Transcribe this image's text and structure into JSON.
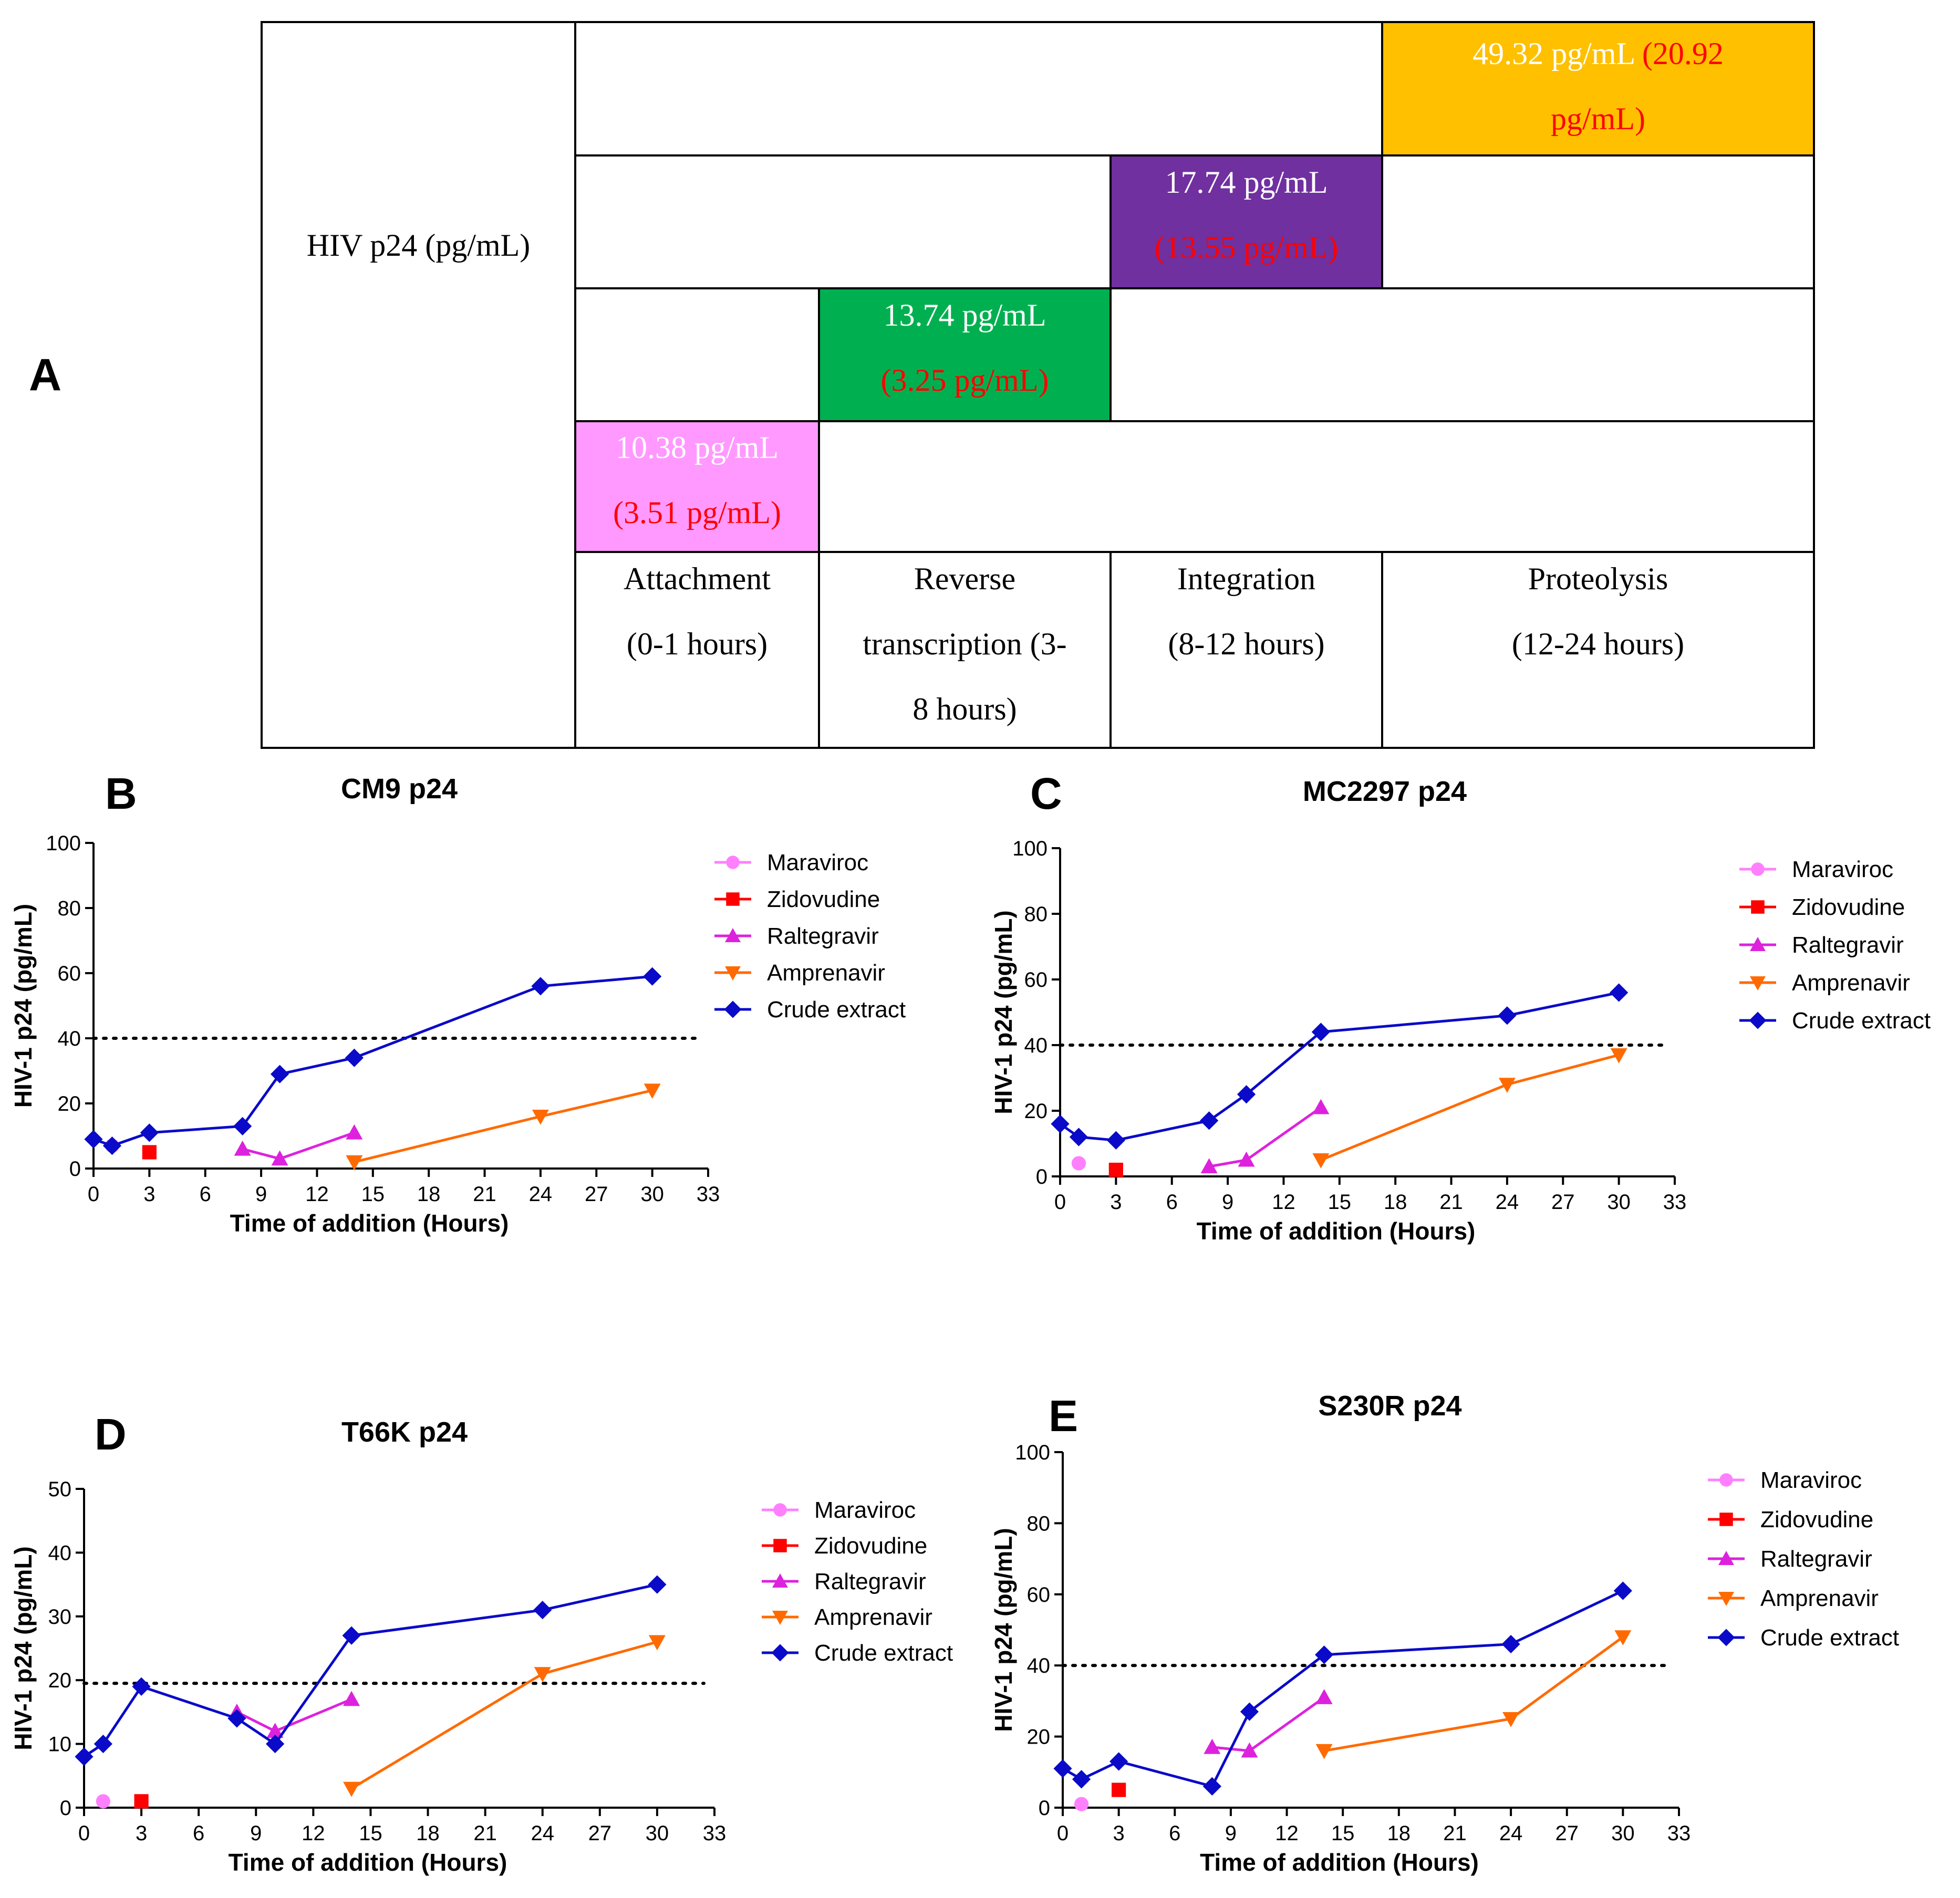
{
  "panel_a": {
    "label": "A",
    "row_header": "HIV p24 (pg/mL)",
    "stages": [
      {
        "line1": "Attachment",
        "line2": "(0-1 hours)",
        "line3": ""
      },
      {
        "line1": "Reverse",
        "line2": "transcription (3-",
        "line3": "8 hours)"
      },
      {
        "line1": "Integration",
        "line2": "(8-12 hours)",
        "line3": ""
      },
      {
        "line1": "Proteolysis",
        "line2": "(12-24 hours)",
        "line3": ""
      }
    ],
    "cells": [
      {
        "stage": "Attachment",
        "value": "10.38  pg/mL",
        "value2": "(3.51 pg/mL)",
        "color": "#ff99ff",
        "value_color": "#ffffff",
        "value2_color": "#ff0000"
      },
      {
        "stage": "Reverse transcription",
        "value": "13.74  pg/mL",
        "value2": "(3.25 pg/mL)",
        "color": "#00b050",
        "value_color": "#ffffff",
        "value2_color": "#ff0000"
      },
      {
        "stage": "Integration",
        "value": "17.74 pg/mL",
        "value2": "(13.55 pg/mL)",
        "color": "#7030a0",
        "value_color": "#ffffff",
        "value2_color": "#ff0000"
      },
      {
        "stage": "Proteolysis",
        "value": "49.32 pg/mL",
        "value_extra": " (20.92",
        "value2": "pg/mL)",
        "color": "#ffc000",
        "value_color": "#ffffff",
        "value2_color": "#ff0000"
      }
    ]
  },
  "colors": {
    "Maraviroc": "#ff80ff",
    "Zidovudine": "#ff0000",
    "Raltegravir": "#dd22dd",
    "Amprenavir": "#ff6a00",
    "Crude extract": "#0a0ac8"
  },
  "chart_data": [
    {
      "panel": "B",
      "type": "line",
      "title": "CM9 p24",
      "xlabel": "Time of addition (Hours)",
      "ylabel": "HIV-1 p24 (pg/mL)",
      "xlim": [
        0,
        33
      ],
      "ylim": [
        0,
        100
      ],
      "xticks": [
        0,
        3,
        6,
        9,
        12,
        15,
        18,
        21,
        24,
        27,
        30,
        33
      ],
      "yticks": [
        0,
        20,
        40,
        60,
        80,
        100
      ],
      "threshold": 40,
      "legend": [
        "Maraviroc",
        "Zidovudine",
        "Raltegravir",
        "Amprenavir",
        "Crude extract"
      ],
      "series": [
        {
          "name": "Maraviroc",
          "marker": "circle",
          "x": [
            1
          ],
          "y": [
            7
          ]
        },
        {
          "name": "Zidovudine",
          "marker": "square",
          "x": [
            3
          ],
          "y": [
            5
          ]
        },
        {
          "name": "Raltegravir",
          "marker": "triangle",
          "x": [
            8,
            10,
            14
          ],
          "y": [
            6,
            3,
            11
          ]
        },
        {
          "name": "Amprenavir",
          "marker": "triangle-down",
          "x": [
            14,
            24,
            30
          ],
          "y": [
            2,
            16,
            24
          ]
        },
        {
          "name": "Crude extract",
          "marker": "diamond",
          "x": [
            0,
            1,
            3,
            8,
            10,
            14,
            24,
            30
          ],
          "y": [
            9,
            7,
            11,
            13,
            29,
            34,
            56,
            59
          ]
        }
      ]
    },
    {
      "panel": "C",
      "type": "line",
      "title": "MC2297 p24",
      "xlabel": "Time of addition (Hours)",
      "ylabel": "HIV-1 p24 (pg/mL)",
      "xlim": [
        0,
        33
      ],
      "ylim": [
        0,
        100
      ],
      "xticks": [
        0,
        3,
        6,
        9,
        12,
        15,
        18,
        21,
        24,
        27,
        30,
        33
      ],
      "yticks": [
        0,
        20,
        40,
        60,
        80,
        100
      ],
      "threshold": 40,
      "legend": [
        "Maraviroc",
        "Zidovudine",
        "Raltegravir",
        "Amprenavir",
        "Crude extract"
      ],
      "series": [
        {
          "name": "Maraviroc",
          "marker": "circle",
          "x": [
            1
          ],
          "y": [
            4
          ]
        },
        {
          "name": "Zidovudine",
          "marker": "square",
          "x": [
            3
          ],
          "y": [
            2
          ]
        },
        {
          "name": "Raltegravir",
          "marker": "triangle",
          "x": [
            8,
            10,
            14
          ],
          "y": [
            3,
            5,
            21
          ]
        },
        {
          "name": "Amprenavir",
          "marker": "triangle-down",
          "x": [
            14,
            24,
            30
          ],
          "y": [
            5,
            28,
            37
          ]
        },
        {
          "name": "Crude extract",
          "marker": "diamond",
          "x": [
            0,
            1,
            3,
            8,
            10,
            14,
            24,
            30
          ],
          "y": [
            16,
            12,
            11,
            17,
            25,
            44,
            49,
            56
          ]
        }
      ]
    },
    {
      "panel": "D",
      "type": "line",
      "title": "T66K p24",
      "xlabel": "Time of addition (Hours)",
      "ylabel": "HIV-1 p24 (pg/mL)",
      "xlim": [
        0,
        33
      ],
      "ylim": [
        0,
        50
      ],
      "xticks": [
        0,
        3,
        6,
        9,
        12,
        15,
        18,
        21,
        24,
        27,
        30,
        33
      ],
      "yticks": [
        0,
        10,
        20,
        30,
        40,
        50
      ],
      "threshold": 19.5,
      "legend": [
        "Maraviroc",
        "Zidovudine",
        "Raltegravir",
        "Amprenavir",
        "Crude extract"
      ],
      "series": [
        {
          "name": "Maraviroc",
          "marker": "circle",
          "x": [
            1
          ],
          "y": [
            1
          ]
        },
        {
          "name": "Zidovudine",
          "marker": "square",
          "x": [
            3
          ],
          "y": [
            1
          ]
        },
        {
          "name": "Raltegravir",
          "marker": "triangle",
          "x": [
            8,
            10,
            14
          ],
          "y": [
            15,
            12,
            17
          ]
        },
        {
          "name": "Amprenavir",
          "marker": "triangle-down",
          "x": [
            14,
            24,
            30
          ],
          "y": [
            3,
            21,
            26
          ]
        },
        {
          "name": "Crude extract",
          "marker": "diamond",
          "x": [
            0,
            1,
            3,
            8,
            10,
            14,
            24,
            30
          ],
          "y": [
            8,
            10,
            19,
            14,
            10,
            27,
            31,
            35
          ]
        }
      ]
    },
    {
      "panel": "E",
      "type": "line",
      "title": "S230R p24",
      "xlabel": "Time of addition (Hours)",
      "ylabel": "HIV-1 p24 (pg/mL)",
      "xlim": [
        0,
        33
      ],
      "ylim": [
        0,
        100
      ],
      "xticks": [
        0,
        3,
        6,
        9,
        12,
        15,
        18,
        21,
        24,
        27,
        30,
        33
      ],
      "yticks": [
        0,
        20,
        40,
        60,
        80,
        100
      ],
      "threshold": 40,
      "legend": [
        "Maraviroc",
        "Zidovudine",
        "Raltegravir",
        "Amprenavir",
        "Crude extract"
      ],
      "series": [
        {
          "name": "Maraviroc",
          "marker": "circle",
          "x": [
            1
          ],
          "y": [
            1
          ]
        },
        {
          "name": "Zidovudine",
          "marker": "square",
          "x": [
            3
          ],
          "y": [
            5
          ]
        },
        {
          "name": "Raltegravir",
          "marker": "triangle",
          "x": [
            8,
            10,
            14
          ],
          "y": [
            17,
            16,
            31
          ]
        },
        {
          "name": "Amprenavir",
          "marker": "triangle-down",
          "x": [
            14,
            24,
            30
          ],
          "y": [
            16,
            25,
            48
          ]
        },
        {
          "name": "Crude extract",
          "marker": "diamond",
          "x": [
            0,
            1,
            3,
            8,
            10,
            14,
            24,
            30
          ],
          "y": [
            11,
            8,
            13,
            6,
            27,
            43,
            46,
            61
          ]
        }
      ]
    }
  ]
}
